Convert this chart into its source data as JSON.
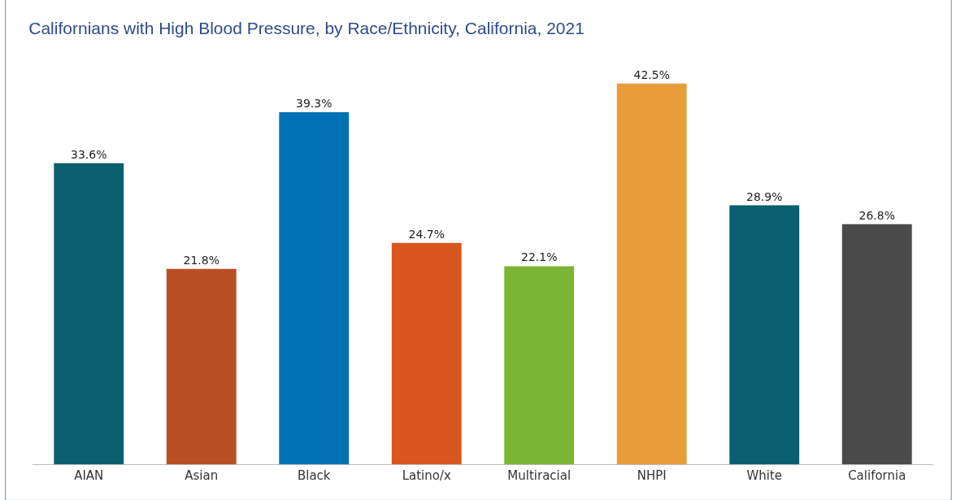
{
  "chart_data": {
    "type": "bar",
    "title": "Californians with High Blood Pressure, by Race/Ethnicity, California, 2021",
    "categories": [
      "AIAN",
      "Asian",
      "Black",
      "Latino/x",
      "Multiracial",
      "NHPI",
      "White",
      "California"
    ],
    "values": [
      33.6,
      21.8,
      39.3,
      24.7,
      22.1,
      42.5,
      28.9,
      26.8
    ],
    "value_labels": [
      "33.6%",
      "21.8%",
      "39.3%",
      "24.7%",
      "22.1%",
      "42.5%",
      "28.9%",
      "26.8%"
    ],
    "colors": [
      "#0a5f6e",
      "#b94f25",
      "#0071b5",
      "#d9561f",
      "#7ab535",
      "#e99c3a",
      "#0a5f6e",
      "#4a4a4a"
    ],
    "data_labels": false
  }
}
